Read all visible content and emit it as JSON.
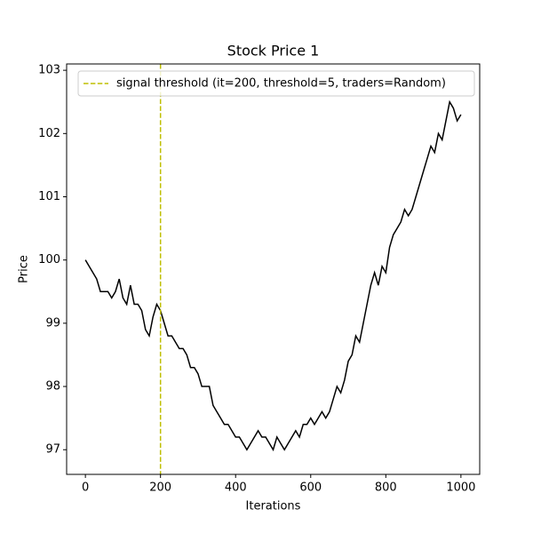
{
  "chart_data": {
    "type": "line",
    "title": "Stock Price 1",
    "x_label": "Iterations",
    "y_label": "Price",
    "x": [
      0,
      10,
      20,
      30,
      40,
      50,
      60,
      70,
      80,
      90,
      100,
      110,
      120,
      130,
      140,
      150,
      160,
      170,
      180,
      190,
      200,
      210,
      220,
      230,
      240,
      250,
      260,
      270,
      280,
      290,
      300,
      310,
      320,
      330,
      340,
      350,
      360,
      370,
      380,
      390,
      400,
      410,
      420,
      430,
      440,
      450,
      460,
      470,
      480,
      490,
      500,
      510,
      520,
      530,
      540,
      550,
      560,
      570,
      580,
      590,
      600,
      610,
      620,
      630,
      640,
      650,
      660,
      670,
      680,
      690,
      700,
      710,
      720,
      730,
      740,
      750,
      760,
      770,
      780,
      790,
      800,
      810,
      820,
      830,
      840,
      850,
      860,
      870,
      880,
      890,
      900,
      910,
      920,
      930,
      940,
      950,
      960,
      970,
      980,
      990,
      1000
    ],
    "values": [
      100.0,
      99.9,
      99.8,
      99.7,
      99.5,
      99.5,
      99.5,
      99.4,
      99.5,
      99.7,
      99.4,
      99.3,
      99.6,
      99.3,
      99.3,
      99.2,
      98.9,
      98.8,
      99.1,
      99.3,
      99.2,
      99.0,
      98.8,
      98.8,
      98.7,
      98.6,
      98.6,
      98.5,
      98.3,
      98.3,
      98.2,
      98.0,
      98.0,
      98.0,
      97.7,
      97.6,
      97.5,
      97.4,
      97.4,
      97.3,
      97.2,
      97.2,
      97.1,
      97.0,
      97.1,
      97.2,
      97.3,
      97.2,
      97.2,
      97.1,
      97.0,
      97.2,
      97.1,
      97.0,
      97.1,
      97.2,
      97.3,
      97.2,
      97.4,
      97.4,
      97.5,
      97.4,
      97.5,
      97.6,
      97.5,
      97.6,
      97.8,
      98.0,
      97.9,
      98.1,
      98.4,
      98.5,
      98.8,
      98.7,
      99.0,
      99.3,
      99.6,
      99.8,
      99.6,
      99.9,
      99.8,
      100.2,
      100.4,
      100.5,
      100.6,
      100.8,
      100.7,
      100.8,
      101.0,
      101.2,
      101.4,
      101.6,
      101.8,
      101.7,
      102.0,
      101.9,
      102.2,
      102.5,
      102.4,
      102.2,
      102.3
    ],
    "color": "#000000",
    "vlines": [
      {
        "x": 200,
        "label": "signal threshold (it=200, threshold=5, traders=Random)",
        "color": "#bfbf00",
        "style": "dashed"
      }
    ],
    "legend": "upper right",
    "xlim": [
      -50,
      1050
    ],
    "xticks": [
      0,
      200,
      400,
      600,
      800,
      1000
    ],
    "ylim": [
      96.61,
      103.1
    ],
    "yticks": [
      97,
      98,
      99,
      100,
      101,
      102,
      103
    ],
    "grid": false
  }
}
